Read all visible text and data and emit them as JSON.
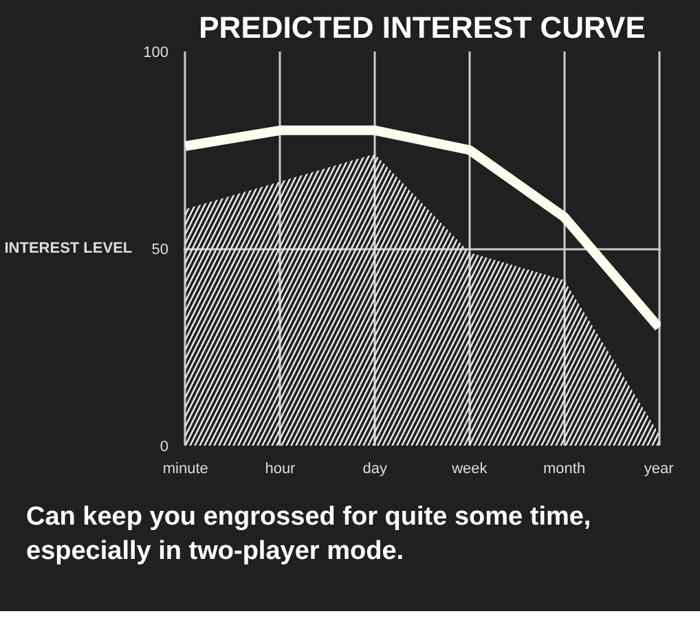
{
  "chart_data": {
    "type": "line",
    "title": "PREDICTED INTEREST CURVE",
    "ylabel": "INTEREST LEVEL",
    "categories": [
      "minute",
      "hour",
      "day",
      "week",
      "month",
      "year"
    ],
    "series": [
      {
        "type": "area",
        "color": "#e8e8e8",
        "values": [
          60,
          67,
          74,
          49,
          42,
          3
        ]
      },
      {
        "color": "#fffdf0",
        "values": [
          76,
          80,
          80,
          75,
          58,
          30
        ]
      }
    ],
    "ylim": [
      0,
      100
    ],
    "yticks": [
      0,
      50,
      100
    ],
    "grid": true,
    "annotations": [
      "Can keep you engrossed for quite some time, especially in two-player mode."
    ]
  }
}
